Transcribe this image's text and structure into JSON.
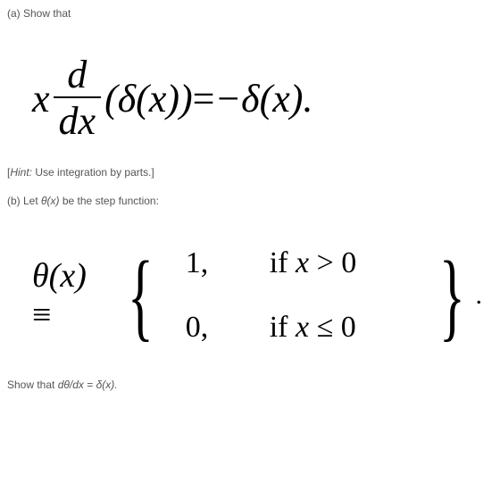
{
  "part_a": {
    "label": "(a) Show that",
    "equation": {
      "lhs_x": "x",
      "frac_num": "d",
      "frac_den": "dx",
      "delta_arg": "(δ(x))",
      "equals": " = ",
      "rhs": "−δ(x)."
    },
    "hint_open": "[",
    "hint_label": "Hint:",
    "hint_text": " Use integration by parts.]"
  },
  "part_b": {
    "label_prefix": "(b) Let ",
    "theta": "θ(x)",
    "label_suffix": " be the step function:",
    "cases": {
      "lhs_theta": "θ",
      "lhs_x": "(x) ",
      "equiv": "≡",
      "rows": [
        {
          "val": "1,",
          "cond_if": "if ",
          "cond_expr_x": "x",
          "cond_rest": " > 0"
        },
        {
          "val": "0,",
          "cond_if": "if ",
          "cond_expr_x": "x",
          "cond_rest": " ≤ 0"
        }
      ],
      "period": "."
    }
  },
  "final": {
    "prefix": "Show that ",
    "expr_lhs": "dθ/dx",
    "equals": " = ",
    "expr_rhs": "δ(x).",
    "full": ""
  },
  "colors": {
    "text_muted": "#555555",
    "equation_text": "#000000",
    "background": "#ffffff"
  },
  "typography": {
    "body_fontsize": 12,
    "eq1_fontsize": 44,
    "cases_lhs_fontsize": 38,
    "cases_body_fontsize": 34
  }
}
